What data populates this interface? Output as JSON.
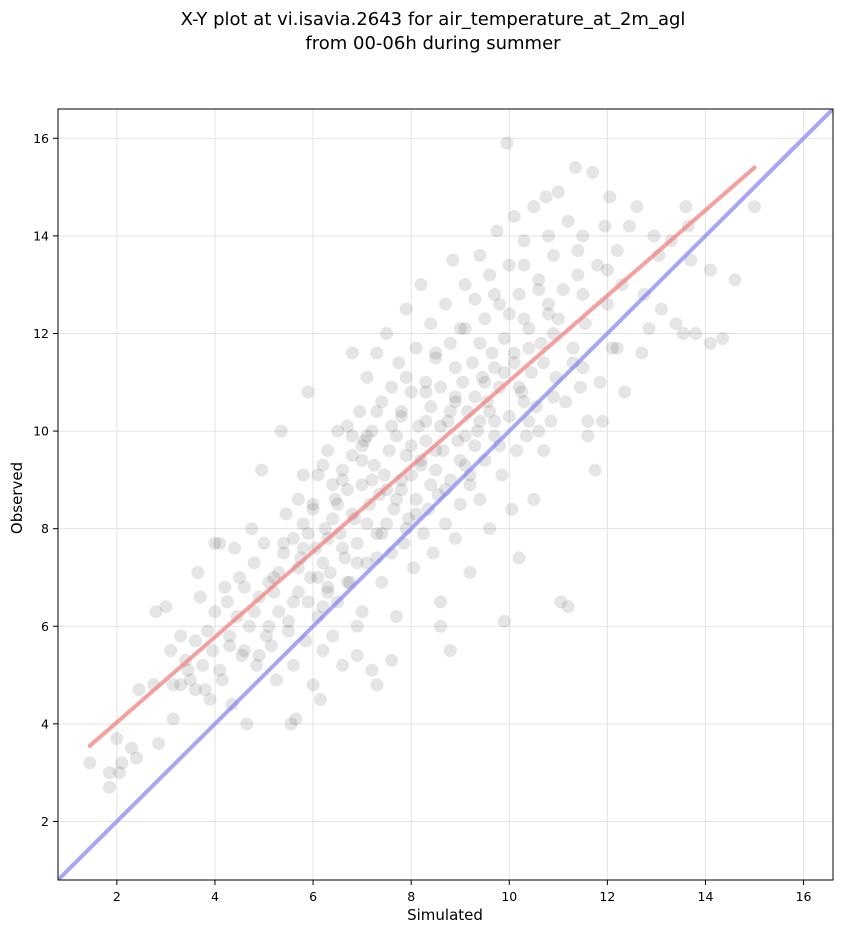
{
  "chart_data": {
    "type": "scatter",
    "title_line1": "X-Y plot at vi.isavia.2643 for air_temperature_at_2m_agl",
    "title_line2": "from 00-06h during summer",
    "xlabel": "Simulated",
    "ylabel": "Observed",
    "xlim": [
      0.8,
      16.6
    ],
    "ylim": [
      0.8,
      16.6
    ],
    "xticks": [
      2,
      4,
      6,
      8,
      10,
      12,
      14,
      16
    ],
    "yticks": [
      2,
      4,
      6,
      8,
      10,
      12,
      14,
      16
    ],
    "grid": true,
    "points_color": "#000000",
    "points_opacity": 0.1,
    "regression_line": {
      "color": "#f08080",
      "x": [
        1.45,
        15.0
      ],
      "y": [
        3.55,
        15.4
      ]
    },
    "identity_line": {
      "color": "#8080f0",
      "x": [
        0.8,
        16.6
      ],
      "y": [
        0.8,
        16.6
      ]
    },
    "points": [
      [
        1.45,
        3.2
      ],
      [
        1.85,
        2.7
      ],
      [
        1.85,
        3.0
      ],
      [
        2.0,
        3.7
      ],
      [
        2.05,
        3.0
      ],
      [
        2.1,
        3.2
      ],
      [
        2.3,
        3.5
      ],
      [
        2.4,
        3.3
      ],
      [
        2.45,
        4.7
      ],
      [
        2.75,
        4.8
      ],
      [
        2.8,
        6.3
      ],
      [
        2.85,
        3.6
      ],
      [
        3.0,
        6.4
      ],
      [
        3.1,
        5.5
      ],
      [
        3.15,
        4.1
      ],
      [
        3.15,
        4.8
      ],
      [
        3.3,
        5.8
      ],
      [
        3.4,
        5.3
      ],
      [
        3.45,
        5.1
      ],
      [
        3.5,
        4.9
      ],
      [
        3.6,
        5.7
      ],
      [
        3.65,
        7.1
      ],
      [
        3.7,
        6.6
      ],
      [
        3.75,
        5.2
      ],
      [
        3.8,
        4.7
      ],
      [
        3.85,
        5.9
      ],
      [
        3.9,
        4.5
      ],
      [
        3.95,
        5.5
      ],
      [
        4.0,
        6.3
      ],
      [
        4.0,
        7.7
      ],
      [
        4.1,
        7.7
      ],
      [
        4.15,
        4.9
      ],
      [
        4.2,
        6.8
      ],
      [
        4.25,
        6.5
      ],
      [
        4.3,
        5.6
      ],
      [
        4.35,
        4.4
      ],
      [
        4.45,
        6.2
      ],
      [
        4.5,
        7.0
      ],
      [
        4.55,
        5.4
      ],
      [
        4.6,
        6.8
      ],
      [
        4.65,
        4.0
      ],
      [
        4.7,
        6.0
      ],
      [
        4.75,
        8.0
      ],
      [
        4.8,
        7.3
      ],
      [
        4.85,
        5.2
      ],
      [
        4.9,
        6.6
      ],
      [
        4.95,
        9.2
      ],
      [
        5.0,
        7.7
      ],
      [
        5.05,
        5.8
      ],
      [
        5.1,
        6.9
      ],
      [
        5.15,
        5.6
      ],
      [
        5.2,
        7.0
      ],
      [
        5.25,
        4.9
      ],
      [
        5.3,
        6.3
      ],
      [
        5.35,
        10.0
      ],
      [
        5.4,
        7.5
      ],
      [
        5.45,
        8.3
      ],
      [
        5.5,
        6.1
      ],
      [
        5.55,
        4.0
      ],
      [
        5.6,
        7.8
      ],
      [
        5.6,
        5.2
      ],
      [
        5.65,
        4.1
      ],
      [
        5.7,
        6.7
      ],
      [
        5.75,
        7.4
      ],
      [
        5.8,
        8.1
      ],
      [
        5.85,
        5.7
      ],
      [
        5.9,
        6.5
      ],
      [
        5.9,
        10.8
      ],
      [
        5.95,
        7.0
      ],
      [
        6.0,
        4.8
      ],
      [
        6.0,
        8.5
      ],
      [
        6.05,
        7.6
      ],
      [
        6.1,
        6.2
      ],
      [
        6.1,
        9.1
      ],
      [
        6.15,
        4.5
      ],
      [
        6.2,
        7.3
      ],
      [
        6.2,
        5.5
      ],
      [
        6.25,
        8.0
      ],
      [
        6.3,
        6.8
      ],
      [
        6.3,
        9.6
      ],
      [
        6.35,
        7.1
      ],
      [
        6.4,
        5.8
      ],
      [
        6.45,
        8.6
      ],
      [
        6.5,
        10.0
      ],
      [
        6.5,
        6.5
      ],
      [
        6.55,
        7.9
      ],
      [
        6.6,
        9.2
      ],
      [
        6.6,
        5.2
      ],
      [
        6.65,
        7.4
      ],
      [
        6.7,
        8.8
      ],
      [
        6.7,
        10.1
      ],
      [
        6.75,
        6.9
      ],
      [
        6.8,
        11.6
      ],
      [
        6.8,
        9.5
      ],
      [
        6.85,
        8.2
      ],
      [
        6.9,
        7.7
      ],
      [
        6.9,
        5.4
      ],
      [
        6.95,
        10.4
      ],
      [
        7.0,
        8.9
      ],
      [
        7.0,
        6.3
      ],
      [
        7.05,
        9.8
      ],
      [
        7.1,
        7.3
      ],
      [
        7.1,
        11.1
      ],
      [
        7.15,
        8.5
      ],
      [
        7.2,
        10.0
      ],
      [
        7.2,
        5.1
      ],
      [
        7.25,
        9.3
      ],
      [
        7.3,
        7.9
      ],
      [
        7.3,
        11.6
      ],
      [
        7.35,
        8.7
      ],
      [
        7.4,
        10.6
      ],
      [
        7.4,
        6.9
      ],
      [
        7.45,
        9.1
      ],
      [
        7.5,
        8.1
      ],
      [
        7.5,
        12.0
      ],
      [
        7.55,
        9.6
      ],
      [
        7.6,
        7.5
      ],
      [
        7.6,
        10.9
      ],
      [
        7.65,
        8.4
      ],
      [
        7.7,
        9.9
      ],
      [
        7.7,
        6.2
      ],
      [
        7.75,
        11.4
      ],
      [
        7.8,
        8.8
      ],
      [
        7.8,
        10.3
      ],
      [
        7.85,
        7.7
      ],
      [
        7.9,
        9.5
      ],
      [
        7.9,
        12.5
      ],
      [
        7.95,
        8.2
      ],
      [
        8.0,
        10.8
      ],
      [
        8.0,
        9.1
      ],
      [
        8.05,
        7.2
      ],
      [
        8.1,
        11.7
      ],
      [
        8.1,
        8.6
      ],
      [
        8.15,
        10.1
      ],
      [
        8.2,
        9.4
      ],
      [
        8.2,
        13.0
      ],
      [
        8.25,
        7.9
      ],
      [
        8.3,
        11.0
      ],
      [
        8.3,
        9.8
      ],
      [
        8.35,
        8.4
      ],
      [
        8.4,
        12.2
      ],
      [
        8.4,
        10.5
      ],
      [
        8.45,
        7.5
      ],
      [
        8.5,
        9.2
      ],
      [
        8.5,
        11.5
      ],
      [
        8.55,
        8.7
      ],
      [
        8.6,
        10.9
      ],
      [
        8.6,
        6.5
      ],
      [
        8.65,
        9.6
      ],
      [
        8.7,
        12.6
      ],
      [
        8.7,
        8.1
      ],
      [
        8.75,
        10.2
      ],
      [
        8.8,
        11.8
      ],
      [
        8.8,
        9.0
      ],
      [
        8.85,
        13.5
      ],
      [
        8.9,
        10.6
      ],
      [
        8.9,
        7.8
      ],
      [
        8.95,
        9.8
      ],
      [
        9.0,
        12.1
      ],
      [
        9.0,
        8.5
      ],
      [
        9.05,
        11.0
      ],
      [
        9.1,
        9.3
      ],
      [
        9.1,
        13.0
      ],
      [
        9.15,
        10.4
      ],
      [
        9.2,
        8.9
      ],
      [
        9.2,
        7.1
      ],
      [
        9.25,
        11.4
      ],
      [
        9.3,
        9.7
      ],
      [
        9.3,
        12.7
      ],
      [
        9.35,
        10.0
      ],
      [
        9.4,
        8.6
      ],
      [
        9.4,
        13.6
      ],
      [
        9.45,
        11.1
      ],
      [
        9.5,
        9.4
      ],
      [
        9.5,
        12.3
      ],
      [
        9.55,
        10.6
      ],
      [
        9.6,
        8.0
      ],
      [
        9.6,
        13.2
      ],
      [
        9.65,
        11.6
      ],
      [
        9.7,
        9.9
      ],
      [
        9.75,
        14.1
      ],
      [
        9.8,
        10.9
      ],
      [
        9.8,
        12.6
      ],
      [
        9.85,
        9.1
      ],
      [
        9.9,
        6.1
      ],
      [
        9.9,
        11.9
      ],
      [
        9.95,
        15.9
      ],
      [
        10.0,
        10.3
      ],
      [
        10.0,
        13.4
      ],
      [
        10.05,
        8.4
      ],
      [
        10.1,
        11.4
      ],
      [
        10.1,
        14.4
      ],
      [
        10.15,
        9.6
      ],
      [
        10.2,
        12.8
      ],
      [
        10.2,
        7.4
      ],
      [
        10.25,
        10.8
      ],
      [
        10.3,
        13.9
      ],
      [
        10.35,
        9.9
      ],
      [
        10.4,
        12.1
      ],
      [
        10.45,
        11.2
      ],
      [
        10.5,
        14.6
      ],
      [
        10.5,
        8.6
      ],
      [
        10.55,
        10.5
      ],
      [
        10.6,
        13.1
      ],
      [
        10.65,
        11.8
      ],
      [
        10.7,
        9.6
      ],
      [
        10.75,
        14.8
      ],
      [
        10.8,
        12.4
      ],
      [
        10.85,
        10.2
      ],
      [
        10.9,
        13.6
      ],
      [
        10.95,
        11.1
      ],
      [
        11.0,
        14.9
      ],
      [
        11.05,
        6.5
      ],
      [
        11.1,
        12.9
      ],
      [
        11.15,
        10.6
      ],
      [
        11.2,
        6.4
      ],
      [
        11.2,
        14.3
      ],
      [
        11.3,
        11.7
      ],
      [
        11.35,
        15.4
      ],
      [
        11.4,
        13.2
      ],
      [
        11.45,
        10.9
      ],
      [
        11.5,
        14.0
      ],
      [
        11.55,
        12.2
      ],
      [
        11.6,
        9.9
      ],
      [
        11.7,
        15.3
      ],
      [
        11.75,
        9.2
      ],
      [
        11.8,
        13.4
      ],
      [
        11.85,
        11.0
      ],
      [
        11.95,
        14.2
      ],
      [
        12.0,
        12.6
      ],
      [
        12.05,
        14.8
      ],
      [
        12.1,
        11.7
      ],
      [
        12.2,
        13.7
      ],
      [
        12.35,
        10.8
      ],
      [
        12.45,
        14.2
      ],
      [
        12.6,
        14.6
      ],
      [
        12.7,
        11.6
      ],
      [
        12.75,
        12.8
      ],
      [
        12.85,
        12.1
      ],
      [
        13.05,
        13.6
      ],
      [
        13.1,
        12.5
      ],
      [
        13.3,
        13.9
      ],
      [
        13.4,
        12.2
      ],
      [
        13.55,
        12.0
      ],
      [
        13.6,
        14.6
      ],
      [
        13.7,
        13.5
      ],
      [
        13.8,
        12.0
      ],
      [
        14.1,
        13.3
      ],
      [
        14.1,
        11.8
      ],
      [
        14.35,
        11.9
      ],
      [
        14.6,
        13.1
      ],
      [
        15.0,
        14.6
      ],
      [
        13.65,
        14.2
      ],
      [
        12.95,
        14.0
      ],
      [
        12.3,
        13.0
      ],
      [
        11.9,
        10.2
      ],
      [
        11.6,
        10.2
      ],
      [
        12.2,
        11.7
      ],
      [
        5.8,
        9.1
      ],
      [
        4.4,
        7.6
      ],
      [
        6.9,
        6.0
      ],
      [
        7.6,
        5.3
      ],
      [
        8.6,
        6.0
      ],
      [
        8.8,
        5.5
      ],
      [
        7.3,
        4.8
      ],
      [
        5.9,
        7.9
      ],
      [
        6.4,
        8.9
      ],
      [
        7.0,
        9.7
      ],
      [
        7.8,
        9.0
      ],
      [
        8.3,
        10.2
      ],
      [
        8.9,
        10.7
      ],
      [
        9.7,
        11.3
      ],
      [
        10.3,
        12.3
      ],
      [
        10.9,
        12.0
      ],
      [
        11.3,
        11.4
      ],
      [
        10.6,
        10.0
      ],
      [
        9.4,
        10.2
      ],
      [
        8.5,
        9.6
      ],
      [
        7.7,
        8.6
      ],
      [
        7.1,
        8.1
      ],
      [
        6.6,
        7.6
      ],
      [
        6.1,
        7.0
      ],
      [
        5.6,
        6.5
      ],
      [
        5.1,
        6.0
      ],
      [
        4.6,
        5.5
      ],
      [
        4.1,
        5.1
      ],
      [
        3.6,
        4.7
      ],
      [
        3.3,
        4.8
      ],
      [
        9.1,
        9.9
      ],
      [
        9.6,
        10.4
      ],
      [
        10.2,
        10.9
      ],
      [
        10.7,
        11.4
      ],
      [
        8.2,
        9.3
      ],
      [
        7.5,
        8.8
      ],
      [
        6.8,
        8.3
      ],
      [
        6.3,
        7.8
      ],
      [
        5.7,
        7.2
      ],
      [
        5.2,
        6.7
      ],
      [
        4.8,
        6.3
      ],
      [
        4.3,
        5.8
      ],
      [
        8.0,
        9.7
      ],
      [
        8.6,
        10.1
      ],
      [
        9.3,
        10.7
      ],
      [
        9.9,
        11.2
      ],
      [
        10.4,
        11.7
      ],
      [
        11.0,
        12.3
      ],
      [
        11.5,
        12.8
      ],
      [
        12.0,
        13.3
      ],
      [
        7.2,
        9.0
      ],
      [
        6.5,
        8.5
      ],
      [
        8.4,
        8.9
      ],
      [
        9.0,
        9.4
      ],
      [
        9.7,
        10.2
      ],
      [
        10.3,
        10.6
      ],
      [
        7.9,
        8.0
      ],
      [
        7.3,
        7.4
      ],
      [
        6.7,
        6.9
      ],
      [
        6.2,
        6.4
      ],
      [
        5.5,
        5.9
      ],
      [
        4.9,
        5.4
      ],
      [
        8.8,
        10.4
      ],
      [
        9.5,
        11.0
      ],
      [
        10.1,
        11.6
      ],
      [
        10.8,
        12.6
      ],
      [
        11.4,
        13.7
      ],
      [
        7.6,
        10.1
      ],
      [
        7.0,
        9.4
      ],
      [
        6.4,
        8.2
      ],
      [
        5.8,
        7.6
      ],
      [
        5.3,
        7.1
      ],
      [
        8.1,
        8.3
      ],
      [
        8.7,
        8.8
      ],
      [
        9.2,
        9.1
      ],
      [
        9.8,
        9.7
      ],
      [
        10.4,
        10.2
      ],
      [
        10.9,
        10.7
      ],
      [
        11.5,
        11.3
      ],
      [
        7.4,
        7.9
      ],
      [
        6.9,
        7.3
      ],
      [
        6.3,
        6.7
      ],
      [
        7.9,
        11.1
      ],
      [
        8.5,
        11.6
      ],
      [
        9.1,
        12.1
      ],
      [
        9.7,
        12.8
      ],
      [
        10.3,
        13.4
      ],
      [
        10.8,
        14.0
      ],
      [
        7.3,
        10.4
      ],
      [
        6.8,
        9.9
      ],
      [
        6.2,
        9.3
      ],
      [
        5.7,
        8.6
      ],
      [
        8.3,
        10.8
      ],
      [
        8.9,
        11.3
      ],
      [
        9.4,
        11.8
      ],
      [
        10.0,
        12.4
      ],
      [
        10.6,
        12.9
      ],
      [
        7.8,
        10.4
      ],
      [
        7.1,
        9.9
      ],
      [
        6.6,
        9.0
      ],
      [
        6.0,
        8.4
      ],
      [
        5.4,
        7.7
      ]
    ]
  }
}
